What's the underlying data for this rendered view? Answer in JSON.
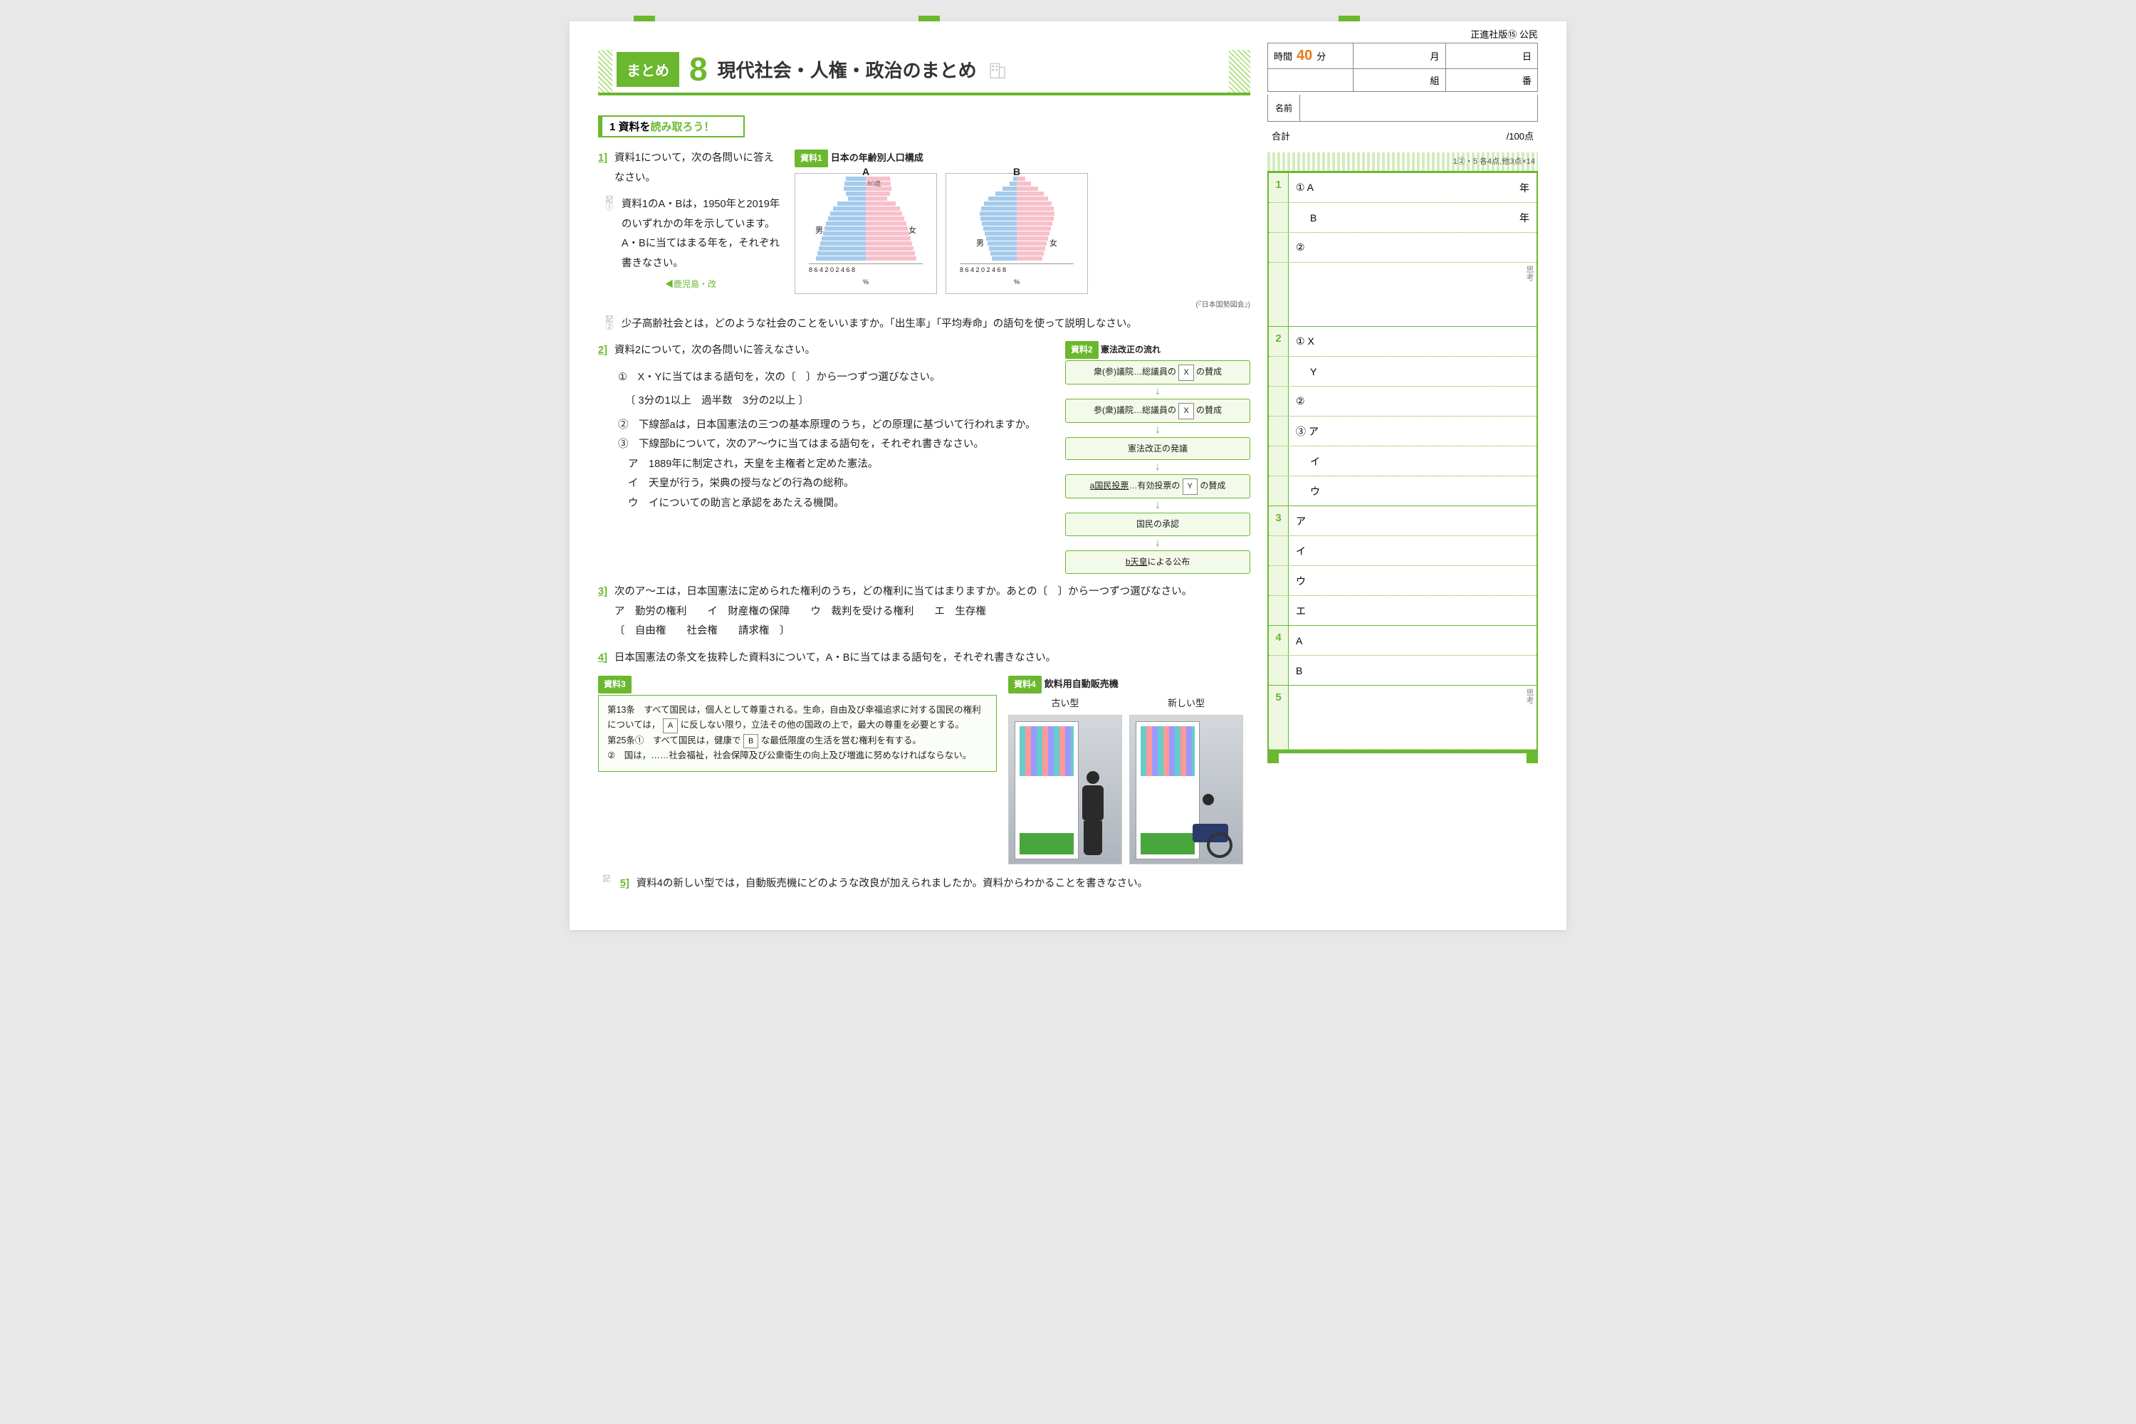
{
  "header": {
    "publisher": "正進社版⑮ 公民"
  },
  "title": {
    "badge": "まとめ",
    "number": "8",
    "text": "現代社会・人権・政治のまとめ"
  },
  "section1": {
    "heading_prefix": "1 資料を",
    "heading_em": "読み取ろう！"
  },
  "source1": {
    "tag": "資料1",
    "title": "日本の年齢別人口構成",
    "labelA": "A",
    "labelB": "B",
    "male": "男",
    "female": "女",
    "age80": "80歳",
    "age60": "60",
    "axis_ticks": "8 6 4 2 0 2 4 6 8",
    "pct": "%",
    "credit": "(『日本国勢図会』)",
    "src_note": "◀鹿児島・改"
  },
  "q1": {
    "num": "1]",
    "text": "資料1について，次の各問いに答えなさい。",
    "s1_mark": "記①",
    "s1": "資料1のA・Bは，1950年と2019年のいずれかの年を示しています。A・Bに当てはまる年を，それぞれ書きなさい。",
    "s2_mark": "記②",
    "s2": "少子高齢社会とは，どのような社会のことをいいますか。「出生率」「平均寿命」の語句を使って説明しなさい。"
  },
  "q2": {
    "num": "2]",
    "text": "資料2について，次の各問いに答えなさい。",
    "s1": "①　X・Yに当てはまる語句を，次の〔　〕から一つずつ選びなさい。",
    "choices": "〔 3分の1以上　過半数　3分の2以上 〕",
    "s2": "②　下線部aは，日本国憲法の三つの基本原理のうち，どの原理に基づいて行われますか。",
    "s3": "③　下線部bについて，次のア～ウに当てはまる語句を，それぞれ書きなさい。",
    "s3a": "ア　1889年に制定され，天皇を主権者と定めた憲法。",
    "s3b": "イ　天皇が行う，栄典の授与などの行為の総称。",
    "s3c": "ウ　イについての助言と承認をあたえる機関。"
  },
  "source2": {
    "tag": "資料2",
    "title": "憲法改正の流れ",
    "box1": "衆(参)議院…総議員の  X  の賛成",
    "box2": "参(衆)議院…総議員の  X  の賛成",
    "box3": "憲法改正の発議",
    "box4": "a国民投票…有効投票の  Y  の賛成",
    "box5": "国民の承認",
    "box6": "b天皇による公布",
    "blankX": "X",
    "blankY": "Y"
  },
  "q3": {
    "num": "3]",
    "text": "次のア～エは，日本国憲法に定められた権利のうち，どの権利に当てはまりますか。あとの〔　〕から一つずつ選びなさい。",
    "line": "ア　勤労の権利　　イ　財産権の保障　　ウ　裁判を受ける権利　　エ　生存権",
    "choices": "〔　自由権　　社会権　　請求権　〕"
  },
  "q4": {
    "num": "4]",
    "text": "日本国憲法の条文を抜粋した資料3について，A・Bに当てはまる語句を，それぞれ書きなさい。"
  },
  "source3": {
    "tag": "資料3",
    "art13": "第13条　すべて国民は，個人として尊重される。生命，自由及び幸福追求に対する国民の権利については，",
    "art13_tail": "に反しない限り，立法その他の国政の上で，最大の尊重を必要とする。",
    "blankA": "A",
    "art25_1": "第25条①　すべて国民は，健康で",
    "blankB": "B",
    "art25_1_tail": "な最低限度の生活を営む権利を有する。",
    "art25_2": "②　国は，……社会福祉，社会保障及び公衆衛生の向上及び増進に努めなければならない。"
  },
  "source4": {
    "tag": "資料4",
    "title": "飲料用自動販売機",
    "old": "古い型",
    "new": "新しい型"
  },
  "q5": {
    "mark": "記",
    "num": "5]",
    "text": "資料4の新しい型では，自動販売機にどのような改良が加えられましたか。資料からわかることを書きなさい。"
  },
  "side": {
    "time_label": "時間",
    "time_val": "40",
    "time_unit": "分",
    "month": "月",
    "day": "日",
    "class": "組",
    "seat": "番",
    "name_label": "名前",
    "total_label": "合計",
    "total_val": "/100点",
    "scoring": "1②・5 各4点,他3点×14",
    "year_unit": "年",
    "g1_1A": "① A",
    "g1_1B": "B",
    "g1_2": "②",
    "g2_1X": "① X",
    "g2_1Y": "Y",
    "g2_2": "②",
    "g2_3a": "③ ア",
    "g2_3i": "イ",
    "g2_3u": "ウ",
    "g3_a": "ア",
    "g3_i": "イ",
    "g3_u": "ウ",
    "g3_e": "エ",
    "g4_A": "A",
    "g4_B": "B",
    "think": "思考"
  },
  "pyramid": {
    "A_m": [
      2.8,
      3.0,
      3.1,
      2.8,
      2.5,
      4.0,
      4.6,
      5.0,
      5.3,
      5.6,
      5.8,
      6.0,
      6.2,
      6.4,
      6.6,
      6.8,
      7.0
    ],
    "A_f": [
      3.4,
      3.5,
      3.6,
      3.4,
      3.0,
      4.2,
      4.8,
      5.1,
      5.4,
      5.7,
      5.9,
      6.1,
      6.3,
      6.5,
      6.7,
      6.9,
      7.1
    ],
    "B_m": [
      0.5,
      1.0,
      2.0,
      3.0,
      4.0,
      4.6,
      5.0,
      5.2,
      5.1,
      4.9,
      4.7,
      4.5,
      4.3,
      4.1,
      3.9,
      3.7,
      3.5
    ],
    "B_f": [
      1.2,
      2.0,
      3.0,
      3.8,
      4.4,
      4.9,
      5.2,
      5.3,
      5.2,
      5.0,
      4.8,
      4.6,
      4.4,
      4.2,
      4.0,
      3.8,
      3.6
    ]
  }
}
